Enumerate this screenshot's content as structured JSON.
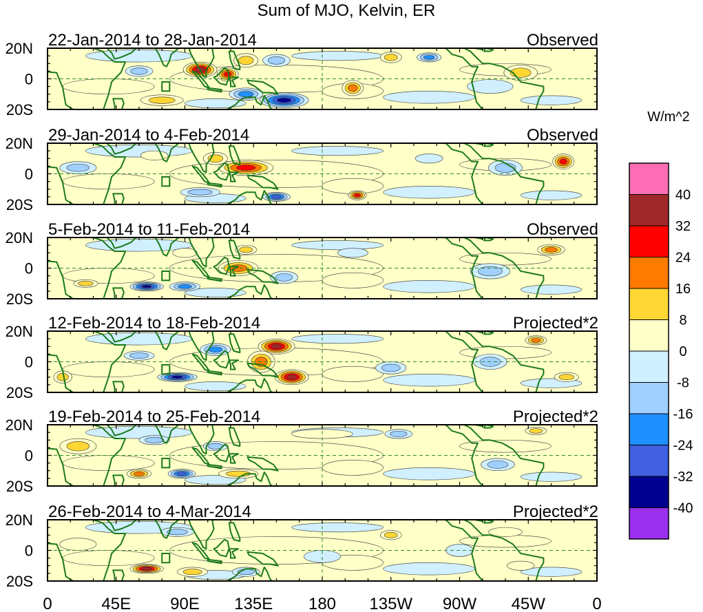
{
  "chart_data": {
    "type": "heatmap",
    "title": "Sum of MJO, Kelvin, ER",
    "units": "W/m^2",
    "x_ticks": [
      "0",
      "45E",
      "90E",
      "135E",
      "180",
      "135W",
      "90W",
      "45W",
      "0"
    ],
    "x_tick_lon": [
      0,
      45,
      90,
      135,
      180,
      225,
      270,
      315,
      360
    ],
    "y_ticks": [
      "20N",
      "0",
      "20S"
    ],
    "y_tick_lat": [
      20,
      0,
      -20
    ],
    "lon_range": [
      0,
      360
    ],
    "lat_range": [
      -20,
      20
    ],
    "colorbar": {
      "labels": [
        "40",
        "32",
        "24",
        "16",
        "8",
        "0",
        "-8",
        "-16",
        "-24",
        "-32",
        "-40"
      ],
      "colors": [
        "#ff6eb4",
        "#a02828",
        "#ff0000",
        "#ff7a00",
        "#ffd633",
        "#ffffc8",
        "#d0f0ff",
        "#a0d0ff",
        "#1e90ff",
        "#4060e0",
        "#000090",
        "#9a30f0"
      ]
    },
    "panels": [
      {
        "date": "22-Jan-2014 to 28-Jan-2014",
        "status": "Observed",
        "features": [
          {
            "lon": 100,
            "lat": 6,
            "w": 22,
            "h": 10,
            "v": 36
          },
          {
            "lon": 118,
            "lat": 3,
            "w": 14,
            "h": 9,
            "v": 28
          },
          {
            "lon": 130,
            "lat": 12,
            "w": 16,
            "h": 9,
            "v": 16
          },
          {
            "lon": 75,
            "lat": -14,
            "w": 28,
            "h": 7,
            "v": 16
          },
          {
            "lon": 200,
            "lat": -6,
            "w": 14,
            "h": 10,
            "v": 20
          },
          {
            "lon": 225,
            "lat": 14,
            "w": 14,
            "h": 7,
            "v": 12
          },
          {
            "lon": 310,
            "lat": 4,
            "w": 22,
            "h": 10,
            "v": 18
          },
          {
            "lon": 155,
            "lat": -14,
            "w": 32,
            "h": 10,
            "v": -40
          },
          {
            "lon": 130,
            "lat": -10,
            "w": 22,
            "h": 8,
            "v": -22
          },
          {
            "lon": 150,
            "lat": 12,
            "w": 18,
            "h": 8,
            "v": -18
          },
          {
            "lon": 60,
            "lat": 5,
            "w": 18,
            "h": 7,
            "v": -12
          },
          {
            "lon": 250,
            "lat": 14,
            "w": 16,
            "h": 6,
            "v": -20
          },
          {
            "lon": 290,
            "lat": -5,
            "w": 30,
            "h": 9,
            "v": -10
          }
        ]
      },
      {
        "date": "29-Jan-2014 to 4-Feb-2014",
        "status": "Observed",
        "features": [
          {
            "lon": 130,
            "lat": 4,
            "w": 36,
            "h": 10,
            "v": 28
          },
          {
            "lon": 110,
            "lat": 10,
            "w": 16,
            "h": 8,
            "v": 18
          },
          {
            "lon": 203,
            "lat": -14,
            "w": 12,
            "h": 6,
            "v": 30
          },
          {
            "lon": 338,
            "lat": 8,
            "w": 14,
            "h": 10,
            "v": 28
          },
          {
            "lon": 150,
            "lat": -15,
            "w": 18,
            "h": 6,
            "v": -34
          },
          {
            "lon": 20,
            "lat": 4,
            "w": 24,
            "h": 8,
            "v": -18
          },
          {
            "lon": 100,
            "lat": -12,
            "w": 26,
            "h": 6,
            "v": -14
          },
          {
            "lon": 300,
            "lat": 4,
            "w": 22,
            "h": 10,
            "v": -12
          },
          {
            "lon": 250,
            "lat": 10,
            "w": 18,
            "h": 6,
            "v": -10
          },
          {
            "lon": 70,
            "lat": 12,
            "w": 18,
            "h": 6,
            "v": 10
          }
        ]
      },
      {
        "date": "5-Feb-2014 to 11-Feb-2014",
        "status": "Observed",
        "features": [
          {
            "lon": 125,
            "lat": 0,
            "w": 26,
            "h": 10,
            "v": 26
          },
          {
            "lon": 130,
            "lat": 12,
            "w": 14,
            "h": 6,
            "v": 18
          },
          {
            "lon": 330,
            "lat": 12,
            "w": 18,
            "h": 7,
            "v": 22
          },
          {
            "lon": 25,
            "lat": -10,
            "w": 16,
            "h": 5,
            "v": 18
          },
          {
            "lon": 65,
            "lat": -12,
            "w": 22,
            "h": 6,
            "v": -40
          },
          {
            "lon": 90,
            "lat": -12,
            "w": 20,
            "h": 6,
            "v": -20
          },
          {
            "lon": 155,
            "lat": -6,
            "w": 18,
            "h": 8,
            "v": -18
          },
          {
            "lon": 290,
            "lat": -2,
            "w": 26,
            "h": 10,
            "v": -14
          },
          {
            "lon": 200,
            "lat": 10,
            "w": 20,
            "h": 6,
            "v": -10
          },
          {
            "lon": 90,
            "lat": 10,
            "w": 16,
            "h": 6,
            "v": 8
          }
        ]
      },
      {
        "date": "12-Feb-2014 to 18-Feb-2014",
        "status": "Projected*2",
        "features": [
          {
            "lon": 150,
            "lat": 10,
            "w": 24,
            "h": 10,
            "v": 36
          },
          {
            "lon": 160,
            "lat": -10,
            "w": 22,
            "h": 10,
            "v": 36
          },
          {
            "lon": 140,
            "lat": 0,
            "w": 18,
            "h": 14,
            "v": 26
          },
          {
            "lon": 320,
            "lat": 14,
            "w": 14,
            "h": 6,
            "v": 20
          },
          {
            "lon": 10,
            "lat": -10,
            "w": 12,
            "h": 8,
            "v": 18
          },
          {
            "lon": 85,
            "lat": -10,
            "w": 26,
            "h": 6,
            "v": -40
          },
          {
            "lon": 110,
            "lat": 8,
            "w": 20,
            "h": 8,
            "v": -20
          },
          {
            "lon": 60,
            "lat": 4,
            "w": 20,
            "h": 6,
            "v": -16
          },
          {
            "lon": 225,
            "lat": -4,
            "w": 20,
            "h": 8,
            "v": -14
          },
          {
            "lon": 290,
            "lat": 0,
            "w": 22,
            "h": 10,
            "v": -14
          },
          {
            "lon": 340,
            "lat": -10,
            "w": 16,
            "h": 6,
            "v": 14
          }
        ]
      },
      {
        "date": "19-Feb-2014 to 25-Feb-2014",
        "status": "Projected*2",
        "features": [
          {
            "lon": 60,
            "lat": -12,
            "w": 16,
            "h": 6,
            "v": 26
          },
          {
            "lon": 20,
            "lat": 6,
            "w": 24,
            "h": 10,
            "v": 16
          },
          {
            "lon": 125,
            "lat": -12,
            "w": 26,
            "h": 6,
            "v": 16
          },
          {
            "lon": 180,
            "lat": 14,
            "w": 40,
            "h": 6,
            "v": 10
          },
          {
            "lon": 320,
            "lat": 16,
            "w": 14,
            "h": 5,
            "v": 14
          },
          {
            "lon": 88,
            "lat": -12,
            "w": 18,
            "h": 6,
            "v": -30
          },
          {
            "lon": 70,
            "lat": 10,
            "w": 20,
            "h": 6,
            "v": -16
          },
          {
            "lon": 110,
            "lat": 6,
            "w": 16,
            "h": 6,
            "v": -12
          },
          {
            "lon": 230,
            "lat": 14,
            "w": 18,
            "h": 6,
            "v": -12
          },
          {
            "lon": 295,
            "lat": -6,
            "w": 22,
            "h": 8,
            "v": -16
          }
        ]
      },
      {
        "date": "26-Feb-2014 to 4-Mar-2014",
        "status": "Projected*2",
        "features": [
          {
            "lon": 65,
            "lat": -12,
            "w": 22,
            "h": 6,
            "v": 36
          },
          {
            "lon": 225,
            "lat": 10,
            "w": 14,
            "h": 6,
            "v": 16
          },
          {
            "lon": 20,
            "lat": 4,
            "w": 24,
            "h": 8,
            "v": 10
          },
          {
            "lon": 300,
            "lat": 12,
            "w": 22,
            "h": 6,
            "v": 10
          },
          {
            "lon": 310,
            "lat": -10,
            "w": 18,
            "h": 6,
            "v": 10
          },
          {
            "lon": 95,
            "lat": -14,
            "w": 20,
            "h": 6,
            "v": 12
          },
          {
            "lon": 85,
            "lat": 12,
            "w": 22,
            "h": 6,
            "v": -16
          },
          {
            "lon": 130,
            "lat": -14,
            "w": 18,
            "h": 6,
            "v": -12
          },
          {
            "lon": 180,
            "lat": -4,
            "w": 24,
            "h": 8,
            "v": -10
          },
          {
            "lon": 270,
            "lat": 0,
            "w": 18,
            "h": 8,
            "v": -10
          }
        ]
      }
    ]
  }
}
